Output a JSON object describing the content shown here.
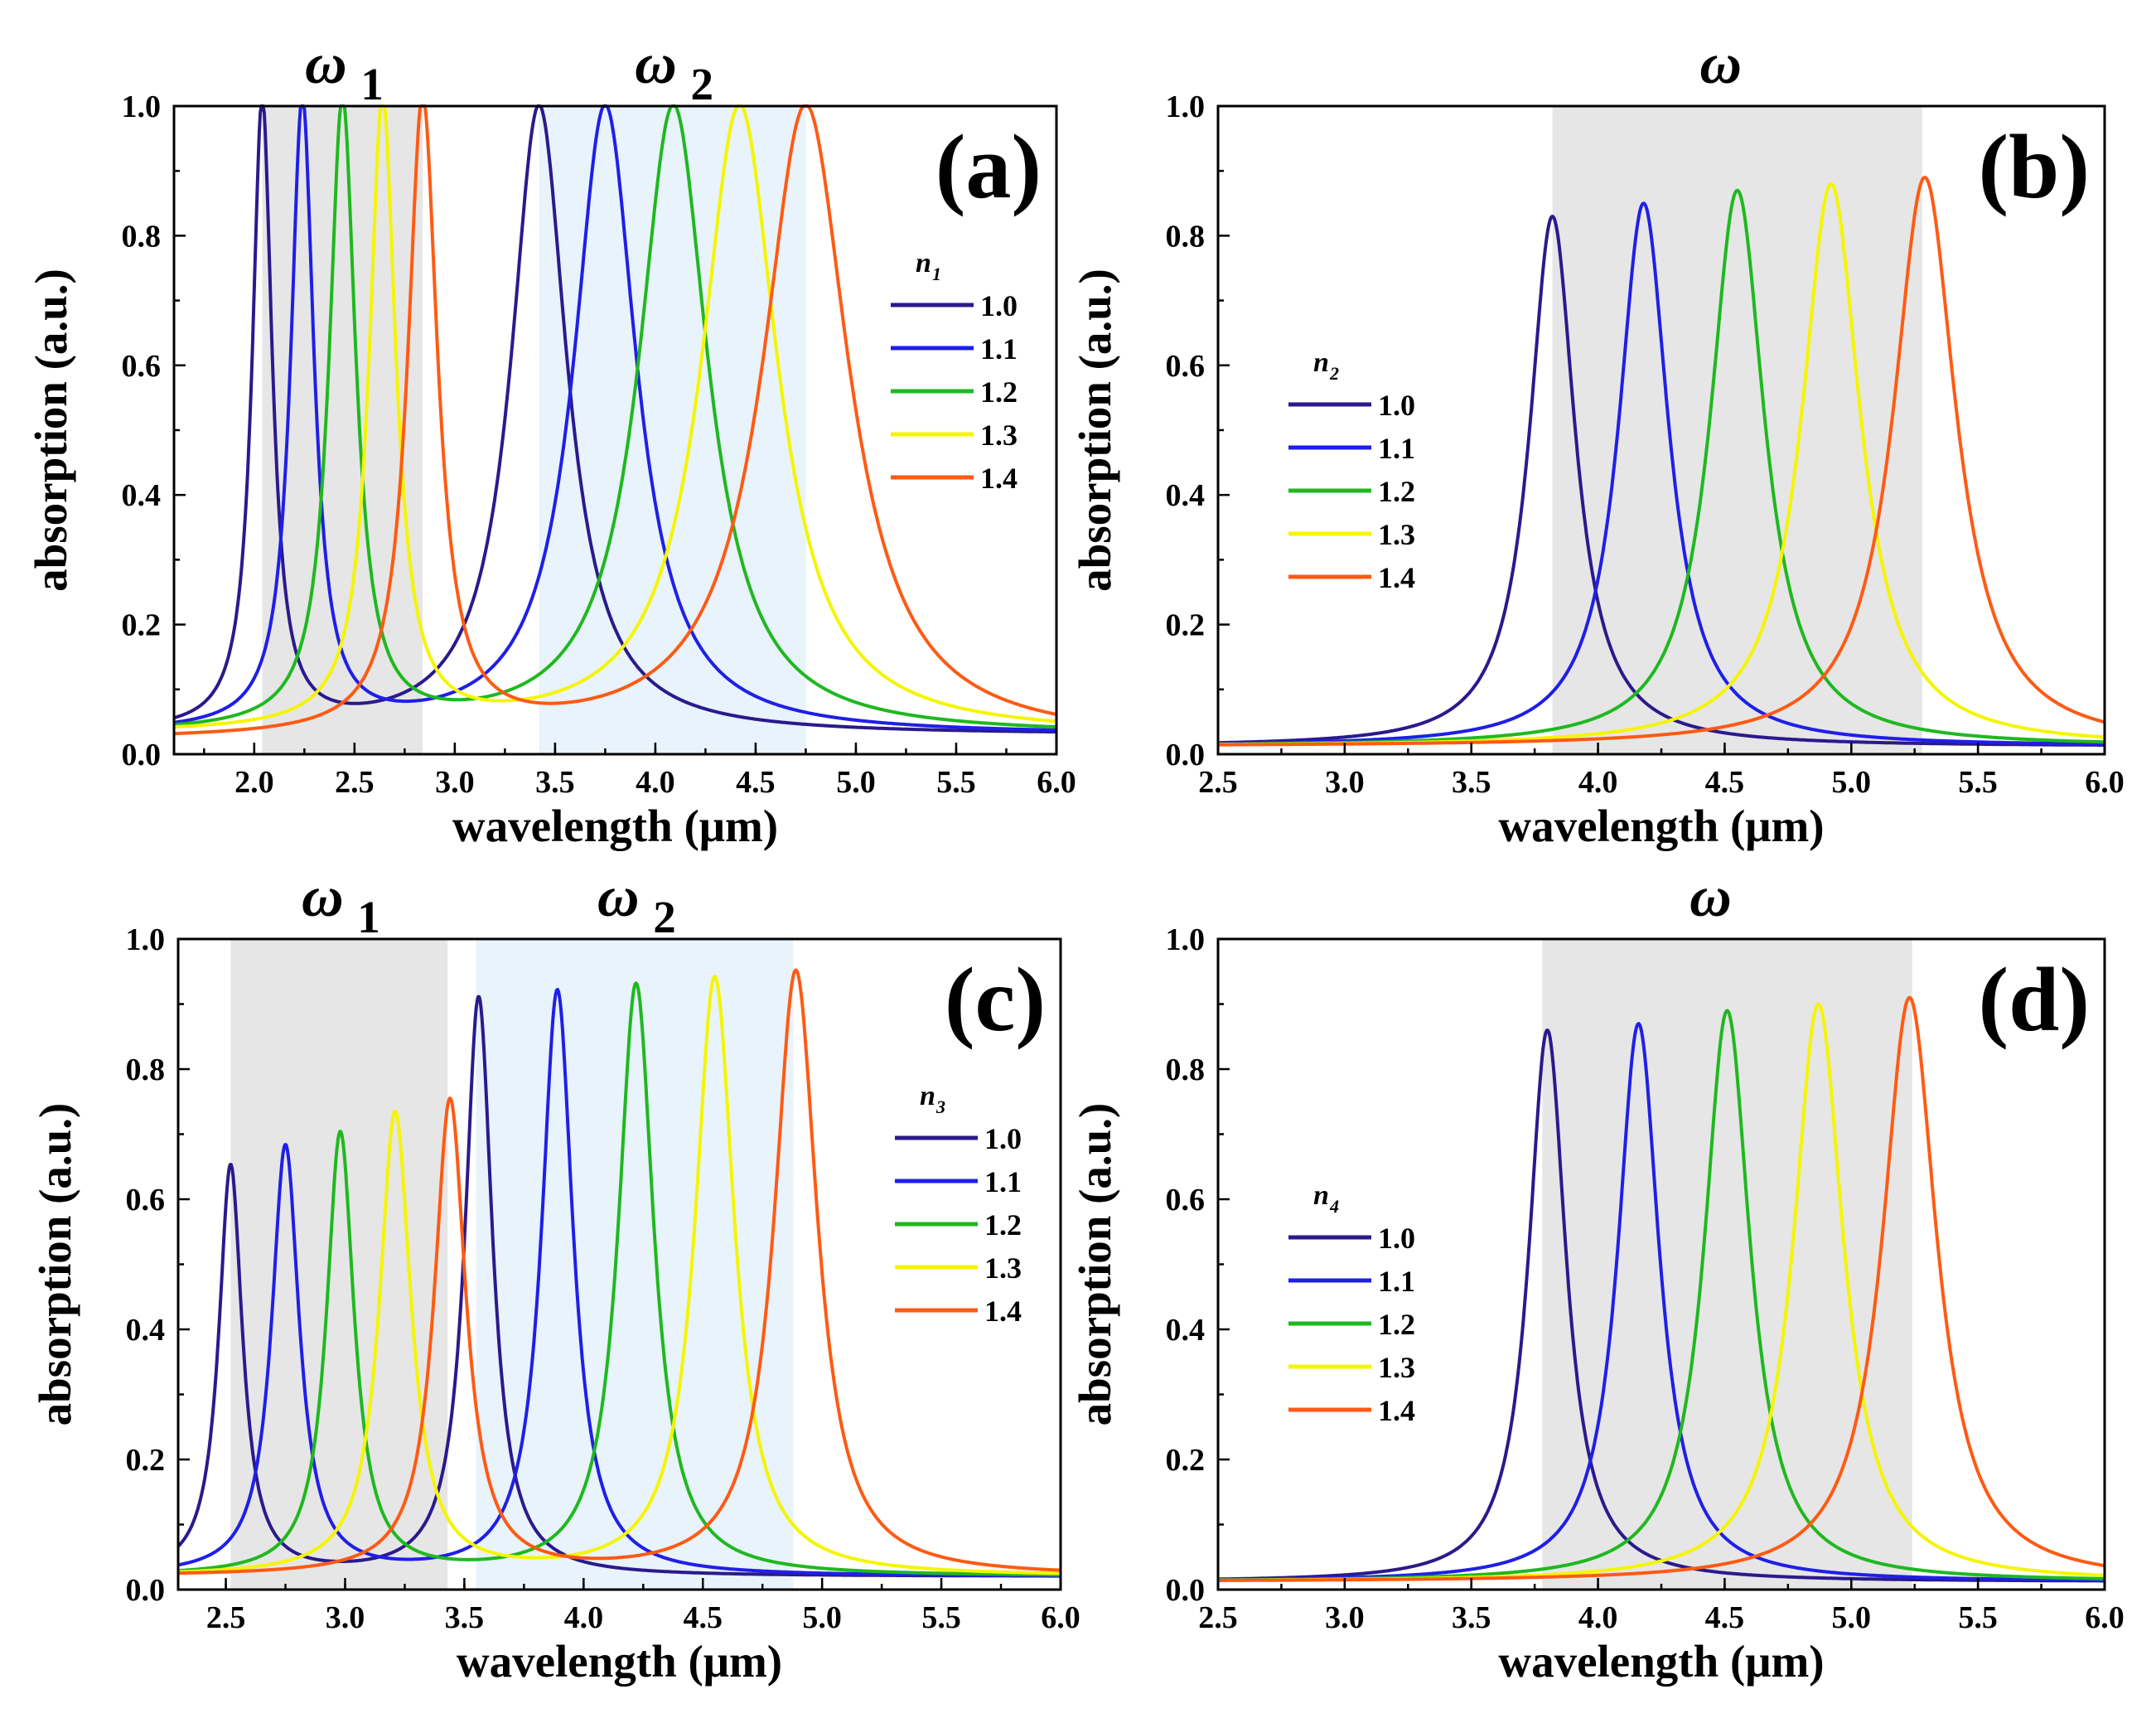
{
  "figure": {
    "series_colors": [
      "#2a1a8c",
      "#1f1fe8",
      "#1fb81f",
      "#f5f500",
      "#ff5a14"
    ],
    "band_colors": {
      "gray": "#e6e6e6",
      "blue": "#e8f3fb"
    }
  },
  "chart_data": [
    {
      "id": "a",
      "type": "line",
      "panel_label": "(a)",
      "xlabel": "wavelength (μm)",
      "ylabel": "absorption (a.u.)",
      "xlim": [
        1.6,
        6.0
      ],
      "ylim": [
        0.0,
        1.0
      ],
      "xticks": [
        "2.0",
        "2.5",
        "3.0",
        "3.5",
        "4.0",
        "4.5",
        "5.0",
        "5.5",
        "6.0"
      ],
      "xtick_values": [
        2.0,
        2.5,
        3.0,
        3.5,
        4.0,
        4.5,
        5.0,
        5.5,
        6.0
      ],
      "yticks": [
        "0.0",
        "0.2",
        "0.4",
        "0.6",
        "0.8",
        "1.0"
      ],
      "ytick_values": [
        0.0,
        0.2,
        0.4,
        0.6,
        0.8,
        1.0
      ],
      "legend": {
        "title": "n",
        "subscript": "1",
        "position": "right"
      },
      "bands": [
        {
          "name": "ω",
          "subscript": "1",
          "x": [
            2.04,
            2.84
          ],
          "color": "gray"
        },
        {
          "name": "ω",
          "subscript": "2",
          "x": [
            3.42,
            4.75
          ],
          "color": "blue"
        }
      ],
      "series": [
        {
          "name": "1.0",
          "peaks": [
            {
              "center": 2.04,
              "height": 1.0,
              "width": 0.06
            },
            {
              "center": 3.42,
              "height": 1.0,
              "width": 0.17
            }
          ],
          "baseline": 0.03
        },
        {
          "name": "1.1",
          "peaks": [
            {
              "center": 2.24,
              "height": 1.0,
              "width": 0.07
            },
            {
              "center": 3.75,
              "height": 1.0,
              "width": 0.19
            }
          ],
          "baseline": 0.03
        },
        {
          "name": "1.2",
          "peaks": [
            {
              "center": 2.44,
              "height": 1.0,
              "width": 0.08
            },
            {
              "center": 4.09,
              "height": 1.0,
              "width": 0.21
            }
          ],
          "baseline": 0.03
        },
        {
          "name": "1.3",
          "peaks": [
            {
              "center": 2.64,
              "height": 1.0,
              "width": 0.08
            },
            {
              "center": 4.42,
              "height": 1.0,
              "width": 0.23
            }
          ],
          "baseline": 0.03
        },
        {
          "name": "1.4",
          "peaks": [
            {
              "center": 2.84,
              "height": 1.0,
              "width": 0.09
            },
            {
              "center": 4.75,
              "height": 1.0,
              "width": 0.26
            }
          ],
          "baseline": 0.02
        }
      ]
    },
    {
      "id": "b",
      "type": "line",
      "panel_label": "(b)",
      "xlabel": "wavelength (μm)",
      "ylabel": "absorption (a.u.)",
      "xlim": [
        2.5,
        6.0
      ],
      "ylim": [
        0.0,
        1.0
      ],
      "xticks": [
        "2.5",
        "3.0",
        "3.5",
        "4.0",
        "4.5",
        "5.0",
        "5.5",
        "6.0"
      ],
      "xtick_values": [
        2.5,
        3.0,
        3.5,
        4.0,
        4.5,
        5.0,
        5.5,
        6.0
      ],
      "yticks": [
        "0.0",
        "0.2",
        "0.4",
        "0.6",
        "0.8",
        "1.0"
      ],
      "ytick_values": [
        0.0,
        0.2,
        0.4,
        0.6,
        0.8,
        1.0
      ],
      "legend": {
        "title": "n",
        "subscript": "2",
        "position": "left"
      },
      "bands": [
        {
          "name": "ω",
          "subscript": "",
          "x": [
            3.82,
            5.28
          ],
          "color": "gray"
        }
      ],
      "series": [
        {
          "name": "1.0",
          "peaks": [
            {
              "center": 3.82,
              "height": 0.83,
              "width": 0.11
            }
          ],
          "baseline": 0.012
        },
        {
          "name": "1.1",
          "peaks": [
            {
              "center": 4.18,
              "height": 0.85,
              "width": 0.12
            }
          ],
          "baseline": 0.012
        },
        {
          "name": "1.2",
          "peaks": [
            {
              "center": 4.55,
              "height": 0.87,
              "width": 0.13
            }
          ],
          "baseline": 0.012
        },
        {
          "name": "1.3",
          "peaks": [
            {
              "center": 4.92,
              "height": 0.88,
              "width": 0.14
            }
          ],
          "baseline": 0.012
        },
        {
          "name": "1.4",
          "peaks": [
            {
              "center": 5.29,
              "height": 0.89,
              "width": 0.15
            }
          ],
          "baseline": 0.012
        }
      ]
    },
    {
      "id": "c",
      "type": "line",
      "panel_label": "(c)",
      "xlabel": "wavelength (μm)",
      "ylabel": "absorption (a.u.)",
      "xlim": [
        2.3,
        6.0
      ],
      "ylim": [
        0.0,
        1.0
      ],
      "xticks": [
        "2.5",
        "3.0",
        "3.5",
        "4.0",
        "4.5",
        "5.0",
        "5.5",
        "6.0"
      ],
      "xtick_values": [
        2.5,
        3.0,
        3.5,
        4.0,
        4.5,
        5.0,
        5.5,
        6.0
      ],
      "yticks": [
        "0.0",
        "0.2",
        "0.4",
        "0.6",
        "0.8",
        "1.0"
      ],
      "ytick_values": [
        0.0,
        0.2,
        0.4,
        0.6,
        0.8,
        1.0
      ],
      "legend": {
        "title": "n",
        "subscript": "3",
        "position": "right"
      },
      "bands": [
        {
          "name": "ω",
          "subscript": "1",
          "x": [
            2.52,
            3.43
          ],
          "color": "gray"
        },
        {
          "name": "ω",
          "subscript": "2",
          "x": [
            3.55,
            4.88
          ],
          "color": "blue"
        }
      ],
      "series": [
        {
          "name": "1.0",
          "peaks": [
            {
              "center": 2.52,
              "height": 0.65,
              "width": 0.06
            },
            {
              "center": 3.56,
              "height": 0.91,
              "width": 0.07
            }
          ],
          "baseline": 0.02
        },
        {
          "name": "1.1",
          "peaks": [
            {
              "center": 2.75,
              "height": 0.68,
              "width": 0.07
            },
            {
              "center": 3.89,
              "height": 0.92,
              "width": 0.08
            }
          ],
          "baseline": 0.02
        },
        {
          "name": "1.2",
          "peaks": [
            {
              "center": 2.98,
              "height": 0.7,
              "width": 0.07
            },
            {
              "center": 4.22,
              "height": 0.93,
              "width": 0.09
            }
          ],
          "baseline": 0.02
        },
        {
          "name": "1.3",
          "peaks": [
            {
              "center": 3.21,
              "height": 0.73,
              "width": 0.08
            },
            {
              "center": 4.55,
              "height": 0.94,
              "width": 0.1
            }
          ],
          "baseline": 0.02
        },
        {
          "name": "1.4",
          "peaks": [
            {
              "center": 3.44,
              "height": 0.75,
              "width": 0.08
            },
            {
              "center": 4.89,
              "height": 0.95,
              "width": 0.11
            }
          ],
          "baseline": 0.02
        }
      ]
    },
    {
      "id": "d",
      "type": "line",
      "panel_label": "(d)",
      "xlabel": "wavelength (μm)",
      "ylabel": "absorption (a.u.)",
      "xlim": [
        2.5,
        6.0
      ],
      "ylim": [
        0.0,
        1.0
      ],
      "xticks": [
        "2.5",
        "3.0",
        "3.5",
        "4.0",
        "4.5",
        "5.0",
        "5.5",
        "6.0"
      ],
      "xtick_values": [
        2.5,
        3.0,
        3.5,
        4.0,
        4.5,
        5.0,
        5.5,
        6.0
      ],
      "yticks": [
        "0.0",
        "0.2",
        "0.4",
        "0.6",
        "0.8",
        "1.0"
      ],
      "ytick_values": [
        0.0,
        0.2,
        0.4,
        0.6,
        0.8,
        1.0
      ],
      "legend": {
        "title": "n",
        "subscript": "4",
        "position": "left"
      },
      "bands": [
        {
          "name": "ω",
          "subscript": "",
          "x": [
            3.78,
            5.24
          ],
          "color": "gray"
        }
      ],
      "series": [
        {
          "name": "1.0",
          "peaks": [
            {
              "center": 3.8,
              "height": 0.86,
              "width": 0.09
            }
          ],
          "baseline": 0.012
        },
        {
          "name": "1.1",
          "peaks": [
            {
              "center": 4.16,
              "height": 0.87,
              "width": 0.1
            }
          ],
          "baseline": 0.012
        },
        {
          "name": "1.2",
          "peaks": [
            {
              "center": 4.51,
              "height": 0.89,
              "width": 0.11
            }
          ],
          "baseline": 0.012
        },
        {
          "name": "1.3",
          "peaks": [
            {
              "center": 4.87,
              "height": 0.9,
              "width": 0.12
            }
          ],
          "baseline": 0.012
        },
        {
          "name": "1.4",
          "peaks": [
            {
              "center": 5.23,
              "height": 0.91,
              "width": 0.13
            }
          ],
          "baseline": 0.012
        }
      ]
    }
  ]
}
